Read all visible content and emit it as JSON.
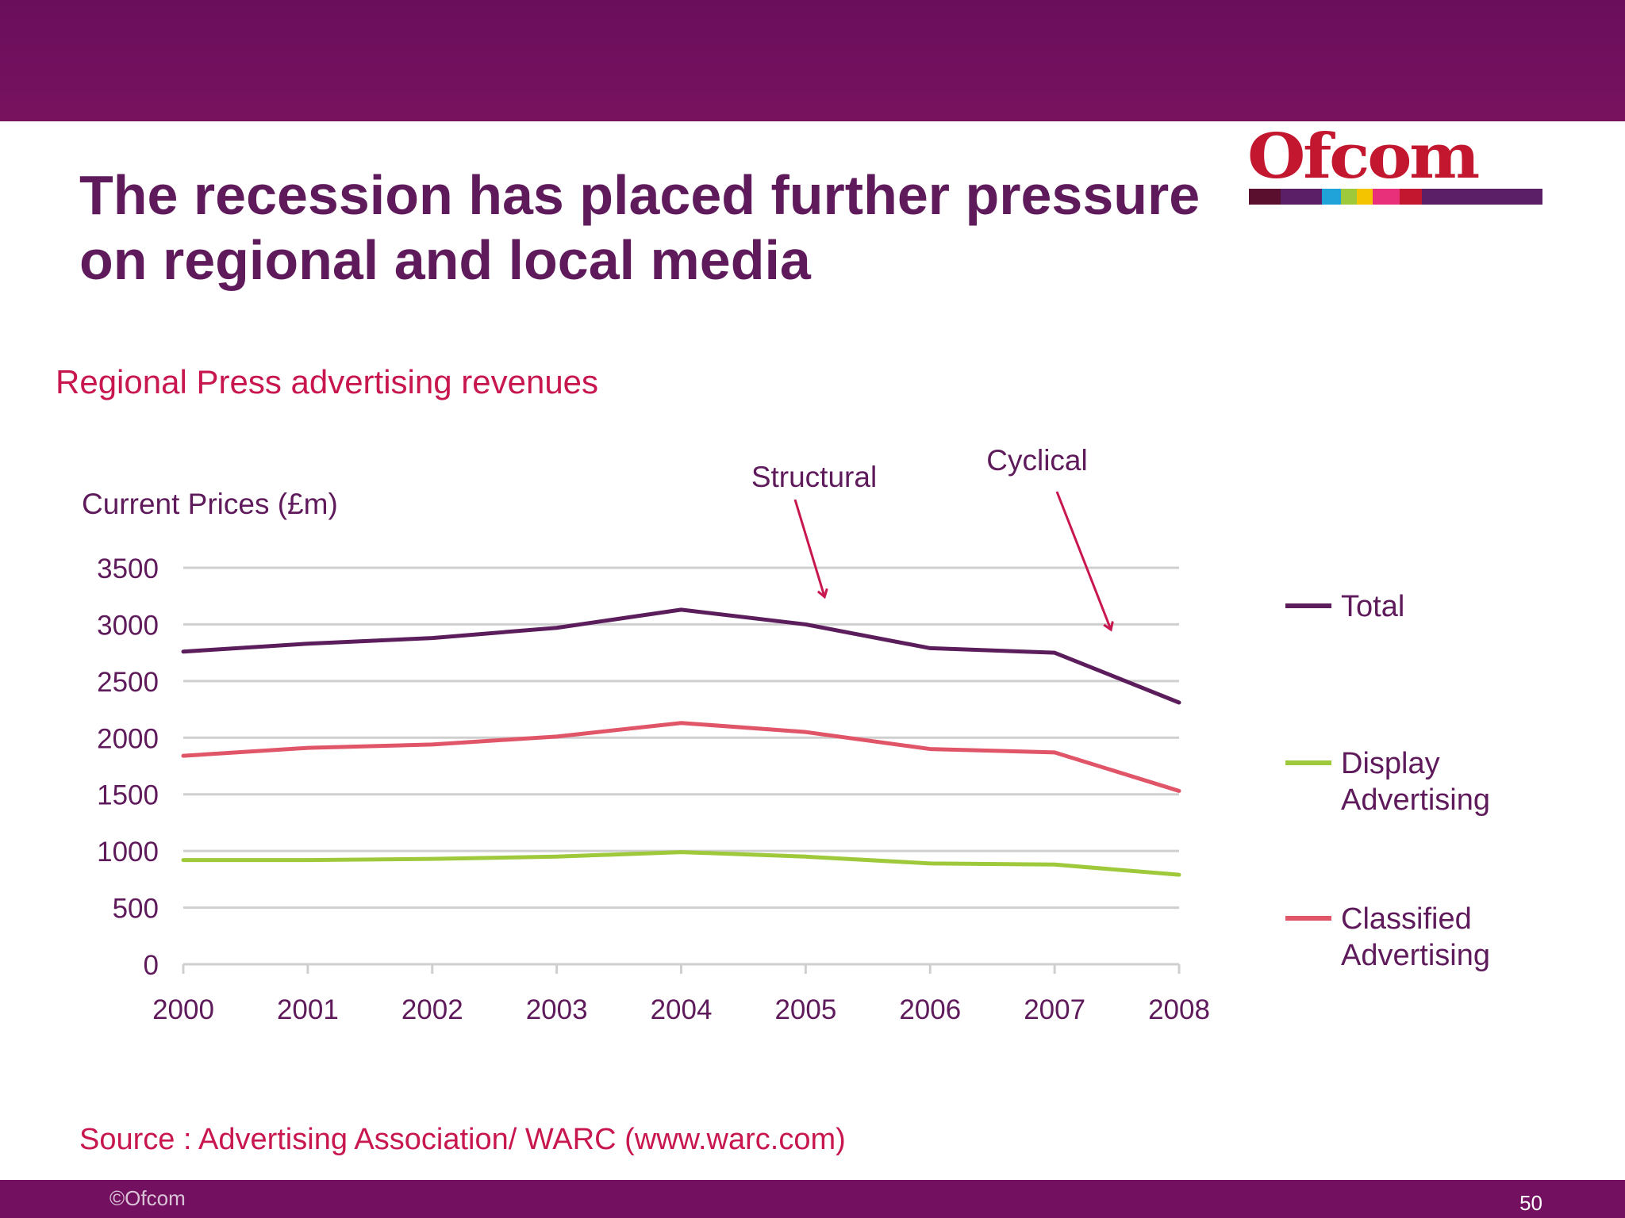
{
  "slide": {
    "title_line1": "The recession has placed further pressure",
    "title_line2": "on regional and local media",
    "subtitle": "Regional Press advertising revenues",
    "source": "Source : Advertising Association/ WARC (www.warc.com)",
    "footer": "©Ofcom",
    "page_number": "50",
    "logo_text": "Ofcom"
  },
  "colors": {
    "band": "#731160",
    "title": "#5e1a5a",
    "accent": "#c8174f",
    "total": "#5c1d5c",
    "display": "#9dc93b",
    "classified": "#e05567",
    "gridline": "#cfcfcf",
    "logo_stripes": [
      "#5a0f2e",
      "#5a1f66",
      "#1fa3d8",
      "#9dc93b",
      "#f5c400",
      "#e8307a",
      "#c3172f",
      "#5a1f66"
    ]
  },
  "chart_data": {
    "type": "line",
    "title": "Regional Press advertising revenues",
    "ylabel": "Current Prices (£m)",
    "xlabel": "",
    "categories": [
      "2000",
      "2001",
      "2002",
      "2003",
      "2004",
      "2005",
      "2006",
      "2007",
      "2008"
    ],
    "ylim": [
      0,
      3500
    ],
    "yticks": [
      0,
      500,
      1000,
      1500,
      2000,
      2500,
      3000,
      3500
    ],
    "grid": true,
    "legend_position": "right",
    "series": [
      {
        "name": "Total",
        "values": [
          2760,
          2830,
          2880,
          2970,
          3130,
          3000,
          2790,
          2750,
          2310
        ]
      },
      {
        "name": "Display Advertising",
        "label_lines": [
          "Display",
          "Advertising"
        ],
        "values": [
          920,
          920,
          930,
          950,
          990,
          950,
          890,
          880,
          790
        ]
      },
      {
        "name": "Classified Advertising",
        "label_lines": [
          "Classified",
          "Advertising"
        ],
        "values": [
          1840,
          1910,
          1940,
          2010,
          2130,
          2050,
          1900,
          1870,
          1530
        ]
      }
    ],
    "annotations": [
      {
        "text": "Structural",
        "x": 2005.15,
        "y": 3250
      },
      {
        "text": "Cyclical",
        "x": 2007.45,
        "y": 2960
      }
    ]
  }
}
